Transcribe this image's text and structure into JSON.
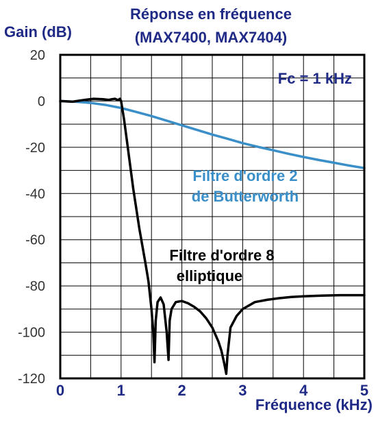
{
  "chart_data": {
    "type": "line",
    "title_line1": "Réponse en fréquence",
    "title_line2": "(MAX7400, MAX7404)",
    "ylabel": "Gain (dB)",
    "xlabel": "Fréquence (kHz)",
    "xlim": [
      0,
      5
    ],
    "ylim": [
      -120,
      20
    ],
    "xticks": [
      "0",
      "1",
      "2",
      "3",
      "4",
      "5"
    ],
    "yticks": [
      "20",
      "0",
      "-20",
      "-40",
      "-60",
      "-80",
      "-100",
      "-120"
    ],
    "grid": true,
    "annotations": {
      "fc": "Fc = 1 kHz",
      "butter_line1": "Filtre d'ordre 2",
      "butter_line2": "de Butterworth",
      "ellip_line1": "Filtre d'ordre 8",
      "ellip_line2": "elliptique"
    },
    "colors": {
      "butterworth": "#3a8fc9",
      "elliptic": "#000000",
      "grid": "#000000",
      "text": "#1f2a86"
    },
    "series": [
      {
        "key": "butterworth",
        "x": [
          0,
          0.25,
          0.5,
          0.75,
          1.0,
          1.25,
          1.5,
          1.75,
          2.0,
          2.25,
          2.5,
          2.75,
          3.0,
          3.25,
          3.5,
          3.75,
          4.0,
          4.25,
          4.5,
          4.75,
          5.0
        ],
        "y": [
          0,
          -0.3,
          -0.8,
          -1.7,
          -3.0,
          -4.7,
          -6.5,
          -8.5,
          -10.5,
          -12.5,
          -14.5,
          -16.3,
          -18.2,
          -19.8,
          -21.3,
          -22.8,
          -24.2,
          -25.5,
          -26.7,
          -27.9,
          -29.0
        ]
      },
      {
        "key": "elliptic",
        "x": [
          0,
          0.2,
          0.4,
          0.55,
          0.7,
          0.8,
          0.85,
          0.9,
          0.95,
          0.98,
          1.0,
          1.05,
          1.1,
          1.2,
          1.3,
          1.4,
          1.45,
          1.5,
          1.53,
          1.55,
          1.57,
          1.6,
          1.65,
          1.7,
          1.75,
          1.78,
          1.8,
          1.83,
          1.9,
          2.0,
          2.1,
          2.2,
          2.3,
          2.4,
          2.5,
          2.6,
          2.65,
          2.7,
          2.73,
          2.75,
          2.8,
          2.9,
          3.0,
          3.2,
          3.4,
          3.6,
          3.8,
          4.0,
          4.3,
          4.6,
          5.0
        ],
        "y": [
          0,
          -0.3,
          0.5,
          1.0,
          0.8,
          0.5,
          0.8,
          1.0,
          0.4,
          1.0,
          0.0,
          -8,
          -18,
          -38,
          -55,
          -70,
          -78,
          -90,
          -100,
          -113,
          -95,
          -87,
          -85,
          -88,
          -100,
          -112,
          -95,
          -90,
          -87,
          -86.5,
          -87.5,
          -89,
          -91,
          -94,
          -98,
          -104,
          -108,
          -114,
          -118,
          -110,
          -98,
          -93,
          -90,
          -87,
          -86,
          -85.3,
          -84.8,
          -84.5,
          -84.2,
          -84,
          -84
        ]
      }
    ]
  }
}
